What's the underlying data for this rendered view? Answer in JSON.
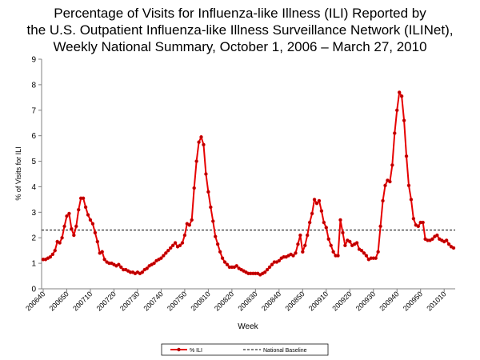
{
  "chart_data": {
    "type": "line",
    "title_lines": [
      "Percentage of Visits for Influenza-like Illness (ILI) Reported by",
      "the U.S. Outpatient Influenza-like Illness Surveillance Network (ILINet),",
      "Weekly National Summary, October 1, 2006 – March 27, 2010"
    ],
    "xlabel": "Week",
    "ylabel": "% of Visits for ILI",
    "ylim": [
      0,
      9
    ],
    "yticks": [
      0,
      1,
      2,
      3,
      4,
      5,
      6,
      7,
      8,
      9
    ],
    "x_tick_labels": [
      "200640",
      "200650",
      "200710",
      "200720",
      "200730",
      "200740",
      "200750",
      "200810",
      "200820",
      "200830",
      "200840",
      "200850",
      "200910",
      "200920",
      "200930",
      "200940",
      "200950",
      "201010"
    ],
    "legend_position": "bottom",
    "grid": false,
    "colors": {
      "ili": "#e60000",
      "ili_marker": "#b30000",
      "baseline": "#000000",
      "axis": "#808080"
    },
    "series": [
      {
        "name": "% ILI",
        "style": "solid-line-with-markers",
        "values": [
          1.15,
          1.15,
          1.2,
          1.25,
          1.35,
          1.5,
          1.85,
          1.8,
          2.0,
          2.45,
          2.85,
          2.95,
          2.35,
          2.1,
          2.45,
          3.1,
          3.55,
          3.55,
          3.2,
          2.9,
          2.7,
          2.55,
          2.2,
          1.85,
          1.4,
          1.45,
          1.15,
          1.05,
          1.0,
          1.0,
          0.95,
          0.9,
          0.95,
          0.85,
          0.75,
          0.75,
          0.7,
          0.65,
          0.65,
          0.6,
          0.65,
          0.6,
          0.65,
          0.75,
          0.8,
          0.9,
          0.95,
          1.0,
          1.1,
          1.15,
          1.2,
          1.3,
          1.4,
          1.5,
          1.6,
          1.7,
          1.8,
          1.65,
          1.7,
          1.8,
          2.1,
          2.55,
          2.5,
          2.7,
          3.95,
          5.0,
          5.75,
          5.95,
          5.65,
          4.5,
          3.8,
          3.2,
          2.65,
          2.05,
          1.75,
          1.45,
          1.2,
          1.05,
          0.95,
          0.85,
          0.85,
          0.85,
          0.9,
          0.8,
          0.75,
          0.7,
          0.65,
          0.6,
          0.6,
          0.6,
          0.6,
          0.6,
          0.55,
          0.6,
          0.65,
          0.75,
          0.85,
          0.95,
          1.05,
          1.05,
          1.1,
          1.2,
          1.25,
          1.25,
          1.3,
          1.35,
          1.3,
          1.4,
          1.75,
          2.1,
          1.45,
          1.7,
          2.1,
          2.6,
          2.95,
          3.5,
          3.35,
          3.45,
          3.05,
          2.6,
          2.4,
          1.95,
          1.7,
          1.45,
          1.3,
          1.3,
          2.7,
          2.2,
          1.7,
          1.9,
          1.85,
          1.7,
          1.75,
          1.8,
          1.55,
          1.5,
          1.4,
          1.3,
          1.15,
          1.2,
          1.2,
          1.2,
          1.45,
          2.45,
          3.45,
          4.05,
          4.25,
          4.2,
          4.85,
          6.1,
          7.0,
          7.7,
          7.55,
          6.6,
          5.2,
          4.05,
          3.5,
          2.75,
          2.5,
          2.45,
          2.6,
          2.6,
          1.95,
          1.9,
          1.9,
          1.95,
          2.05,
          2.1,
          1.95,
          1.9,
          1.85,
          1.9,
          1.75,
          1.65,
          1.6
        ]
      },
      {
        "name": "National Baseline",
        "style": "dashed-line",
        "value": 2.3
      }
    ]
  }
}
